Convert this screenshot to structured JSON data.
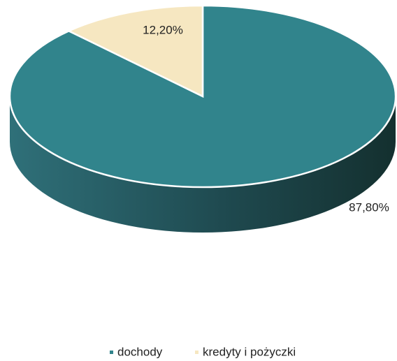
{
  "chart_data": {
    "type": "pie",
    "categories": [
      "dochody",
      "kredyty i pożyczki"
    ],
    "values": [
      87.8,
      12.2
    ],
    "value_labels": [
      "87,80%",
      "12,20%"
    ],
    "colors": [
      "#31848c",
      "#f6e7c1"
    ],
    "legend": "bottom"
  }
}
